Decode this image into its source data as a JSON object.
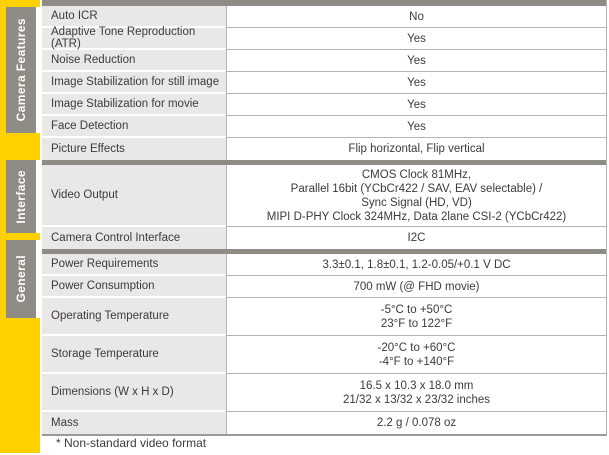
{
  "colors": {
    "accent_yellow": "#FFD100",
    "section_gray": "#8F8B85",
    "label_cell_bg": "#E9E8E6",
    "grid_line": "#b3b3b3",
    "text": "#3b3b3b"
  },
  "sidebar": {
    "labels": [
      "Camera Features",
      "Interface",
      "General"
    ]
  },
  "table": {
    "sections": [
      {
        "name": "Camera Features",
        "rows": [
          {
            "label": "Auto ICR",
            "value_lines": [
              "No"
            ]
          },
          {
            "label": "Adaptive Tone Reproduction (ATR)",
            "value_lines": [
              "Yes"
            ]
          },
          {
            "label": "Noise Reduction",
            "value_lines": [
              "Yes"
            ]
          },
          {
            "label": "Image Stabilization for still image",
            "value_lines": [
              "Yes"
            ]
          },
          {
            "label": "Image Stabilization for movie",
            "value_lines": [
              "Yes"
            ]
          },
          {
            "label": "Face Detection",
            "value_lines": [
              "Yes"
            ]
          },
          {
            "label": "Picture Effects",
            "value_lines": [
              "Flip horizontal, Flip vertical"
            ]
          }
        ]
      },
      {
        "name": "Interface",
        "rows": [
          {
            "label": "Video Output",
            "value_lines": [
              "CMOS Clock 81MHz,",
              "Parallel 16bit (YCbCr422 / SAV, EAV selectable) /",
              "Sync Signal (HD, VD)",
              "MIPI D-PHY Clock 324MHz, Data 2lane CSI-2 (YCbCr422)"
            ]
          },
          {
            "label": "Camera Control Interface",
            "value_lines": [
              "I2C"
            ]
          }
        ]
      },
      {
        "name": "General",
        "rows": [
          {
            "label": "Power Requirements",
            "value_lines": [
              "3.3±0.1, 1.8±0.1, 1.2-0.05/+0.1 V DC"
            ]
          },
          {
            "label": "Power Consumption",
            "value_lines": [
              "700 mW (@ FHD movie)"
            ]
          },
          {
            "label": "Operating Temperature",
            "value_lines": [
              "-5°C to +50°C",
              "23°F to 122°F"
            ]
          },
          {
            "label": "Storage Temperature",
            "value_lines": [
              "-20°C to +60°C",
              "-4°F to +140°F"
            ]
          },
          {
            "label": "Dimensions (W x H x D)",
            "value_lines": [
              "16.5 x 10.3 x 18.0 mm",
              "21/32 x 13/32 x 23/32 inches"
            ]
          },
          {
            "label": "Mass",
            "value_lines": [
              "2.2 g / 0.078 oz"
            ]
          }
        ]
      }
    ]
  },
  "footnote": "* Non-standard video format"
}
